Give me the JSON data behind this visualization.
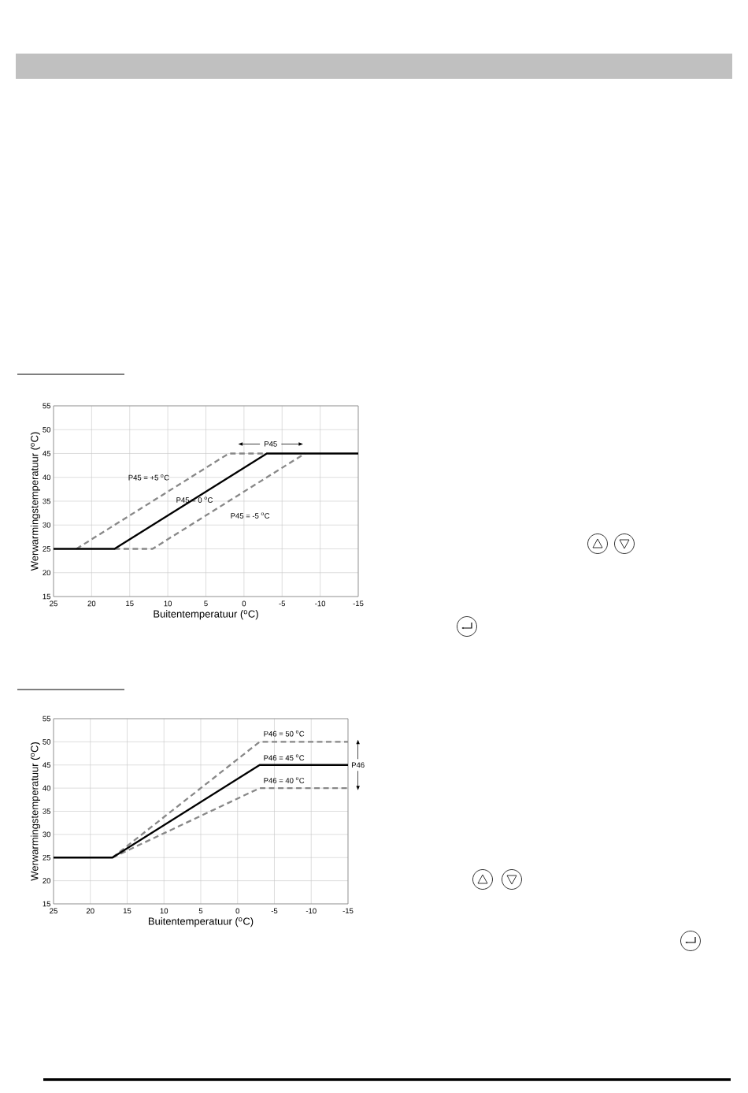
{
  "chart_data": [
    {
      "type": "line",
      "xlabel": "Buitentemperatuur ($^{o}$C)",
      "ylabel": "Werwarmingstemperatuur ($^{o}$C)",
      "xlim": [
        25,
        -15
      ],
      "ylim": [
        15,
        55
      ],
      "xticks": [
        25,
        20,
        15,
        10,
        5,
        0,
        -5,
        -10,
        -15
      ],
      "yticks": [
        15,
        20,
        25,
        30,
        35,
        40,
        45,
        50,
        55
      ],
      "grid": true,
      "series": [
        {
          "color": "#888888",
          "line_style": "dashed",
          "x": [
            22,
            2,
            -3
          ],
          "values": [
            25,
            45,
            45
          ]
        },
        {
          "color": "#888888",
          "line_style": "dashed",
          "x": [
            17,
            12,
            -8
          ],
          "values": [
            25,
            25,
            45
          ]
        },
        {
          "color": "#000000",
          "line_style": "solid",
          "x": [
            25,
            17,
            -3,
            -15
          ],
          "values": [
            25,
            25,
            45,
            45
          ]
        }
      ],
      "annotations": [
        "P45 = +5 $^{o}$C",
        "P45 = 0 $^{o}$C",
        "P45 = -5 $^{o}$C",
        "P45"
      ]
    },
    {
      "type": "line",
      "xlabel": "Buitentemperatuur ($^{o}$C)",
      "ylabel": "Werwarmingstemperatuur ($^{o}$C)",
      "xlim": [
        25,
        -15
      ],
      "ylim": [
        15,
        55
      ],
      "xticks": [
        25,
        20,
        15,
        10,
        5,
        0,
        -5,
        -10,
        -15
      ],
      "yticks": [
        15,
        20,
        25,
        30,
        35,
        40,
        45,
        50,
        55
      ],
      "grid": true,
      "series": [
        {
          "color": "#888888",
          "line_style": "dashed",
          "x": [
            17,
            -3,
            -15
          ],
          "values": [
            25,
            50,
            50
          ]
        },
        {
          "color": "#888888",
          "line_style": "dashed",
          "x": [
            17,
            -3,
            -15
          ],
          "values": [
            25,
            40,
            40
          ]
        },
        {
          "color": "#000000",
          "line_style": "solid",
          "x": [
            25,
            17,
            -3,
            -15
          ],
          "values": [
            25,
            25,
            45,
            45
          ]
        }
      ],
      "annotations": [
        "P46 = 50 $^{o}$C",
        "P46 = 45 $^{o}$C",
        "P46 = 40 $^{o}$C",
        "P46"
      ]
    }
  ]
}
